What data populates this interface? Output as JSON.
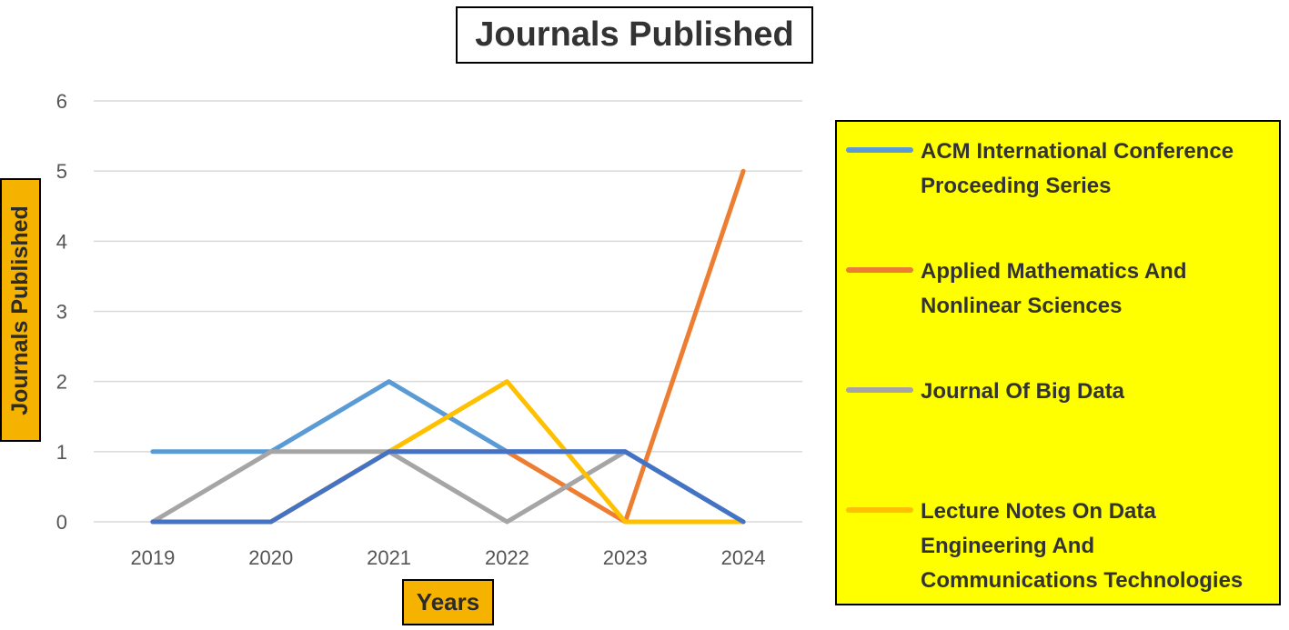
{
  "chart_data": {
    "type": "line",
    "title": "Journals Published",
    "xlabel": "Years",
    "ylabel": "Journals Published",
    "x": [
      "2019",
      "2020",
      "2021",
      "2022",
      "2023",
      "2024"
    ],
    "ylim": [
      0,
      6
    ],
    "yticks": [
      "0",
      "1",
      "2",
      "3",
      "4",
      "5",
      "6"
    ],
    "grid": true,
    "legend_position": "right",
    "series": [
      {
        "name": "ACM International Conference Proceeding Series",
        "color": "#5b9bd5",
        "values": [
          1,
          1,
          2,
          1,
          1,
          0
        ]
      },
      {
        "name": "Applied Mathematics And Nonlinear Sciences",
        "color": "#ed7d31",
        "values": [
          0,
          0,
          1,
          1,
          0,
          5
        ]
      },
      {
        "name": "Journal Of Big Data",
        "color": "#a5a5a5",
        "values": [
          0,
          1,
          1,
          0,
          1,
          0
        ]
      },
      {
        "name": "Lecture Notes On Data Engineering And Communications Technologies",
        "color": "#ffc000",
        "values": [
          0,
          0,
          1,
          2,
          0,
          0
        ]
      },
      {
        "name": "",
        "color": "#4472c4",
        "values": [
          0,
          0,
          1,
          1,
          1,
          0
        ]
      }
    ]
  }
}
